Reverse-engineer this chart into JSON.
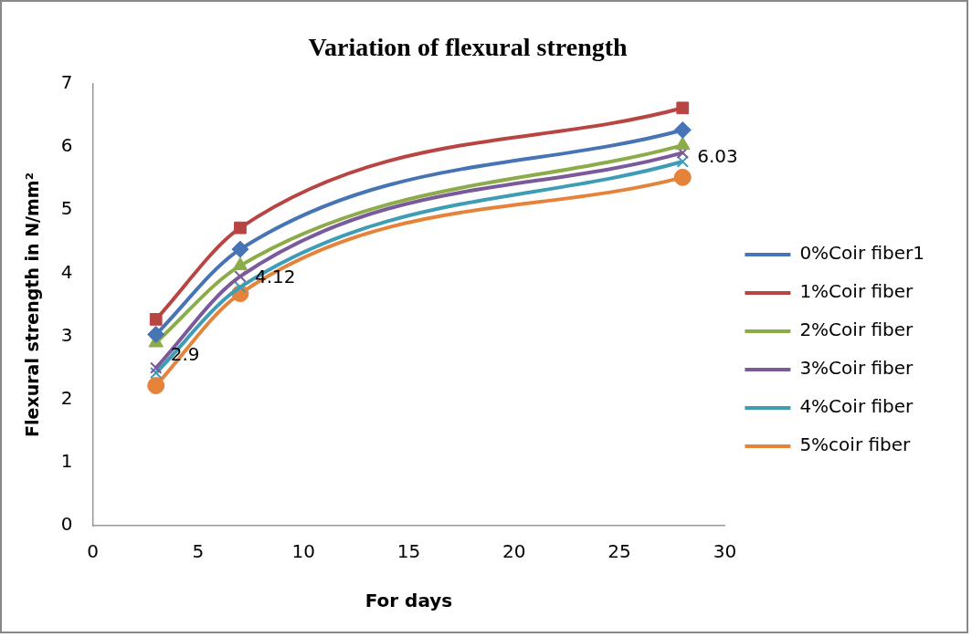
{
  "chart_data": {
    "type": "line",
    "title": "Variation of flexural strength",
    "xlabel": "For days",
    "ylabel": "Flexural strength in N/mm²",
    "x": [
      3,
      7,
      28
    ],
    "series": [
      {
        "name": "0%Coir fiber1",
        "color": "#4674b4",
        "marker": "diamond",
        "values": [
          3.03,
          4.38,
          6.27
        ]
      },
      {
        "name": "1%Coir fiber",
        "color": "#b84542",
        "marker": "square",
        "values": [
          3.27,
          4.72,
          6.62
        ]
      },
      {
        "name": "2%Coir fiber",
        "color": "#8cac4a",
        "marker": "triangle",
        "values": [
          2.9,
          4.12,
          6.03
        ],
        "value_labels": [
          "2.9",
          "4.12",
          "6.03"
        ]
      },
      {
        "name": "3%Coir fiber",
        "color": "#7b5a9c",
        "marker": "cross",
        "values": [
          2.5,
          3.95,
          5.91
        ]
      },
      {
        "name": "4%Coir fiber",
        "color": "#3f9cb5",
        "marker": "cross",
        "values": [
          2.42,
          3.78,
          5.77
        ]
      },
      {
        "name": "5%coir fiber",
        "color": "#e5833b",
        "marker": "circle",
        "values": [
          2.22,
          3.68,
          5.52
        ]
      }
    ],
    "xlim": [
      0,
      30
    ],
    "xticks": [
      0,
      5,
      10,
      15,
      20,
      25,
      30
    ],
    "ylim": [
      0,
      7
    ],
    "yticks": [
      0,
      1,
      2,
      3,
      4,
      5,
      6,
      7
    ],
    "grid": false,
    "legend": "right"
  }
}
